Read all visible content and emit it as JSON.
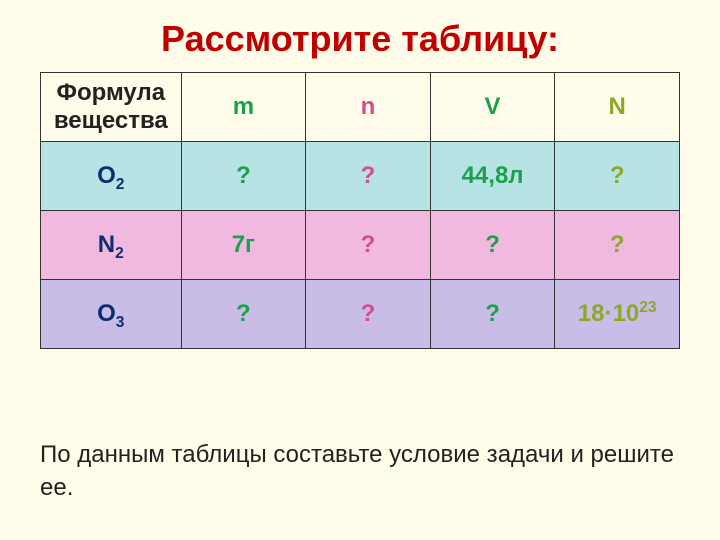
{
  "title": {
    "text": "Рассмотрите таблицу:",
    "color": "#c00000"
  },
  "caption": "По данным таблицы составьте условие задачи и решите ее.",
  "table": {
    "col_widths": [
      "22%",
      "19.5%",
      "19.5%",
      "19.5%",
      "19.5%"
    ],
    "header": {
      "bg": "#fffde9",
      "cells": [
        {
          "text": "Формула вещества",
          "color": "#222222"
        },
        {
          "text": "m",
          "color": "#19a24c"
        },
        {
          "text": "n",
          "color": "#d94b8e"
        },
        {
          "text": "V",
          "color": "#19a24c"
        },
        {
          "text": "N",
          "color": "#8aa92a"
        }
      ]
    },
    "rows": [
      {
        "bg": "#b7e3e4",
        "formula": {
          "base": "O",
          "sub": "2",
          "color": "#0b2e6f"
        },
        "cells": [
          {
            "text": "?",
            "color": "#19a24c"
          },
          {
            "text": "?",
            "color": "#d94b8e"
          },
          {
            "text": "44,8л",
            "color": "#19a24c"
          },
          {
            "text": "?",
            "color": "#8aa92a"
          }
        ]
      },
      {
        "bg": "#f2b9e0",
        "formula": {
          "base": "N",
          "sub": "2",
          "color": "#0b2e6f"
        },
        "cells": [
          {
            "text": "7г",
            "color": "#19a24c"
          },
          {
            "text": "?",
            "color": "#d94b8e"
          },
          {
            "text": "?",
            "color": "#19a24c"
          },
          {
            "text": "?",
            "color": "#8aa92a"
          }
        ]
      },
      {
        "bg": "#c9bce7",
        "formula": {
          "base": "O",
          "sub": "3",
          "color": "#0b2e6f"
        },
        "cells": [
          {
            "text": "?",
            "color": "#19a24c"
          },
          {
            "text": "?",
            "color": "#d94b8e"
          },
          {
            "text": "?",
            "color": "#19a24c"
          },
          {
            "text": "18·10",
            "sup": "23",
            "color": "#8aa92a"
          }
        ]
      }
    ]
  }
}
